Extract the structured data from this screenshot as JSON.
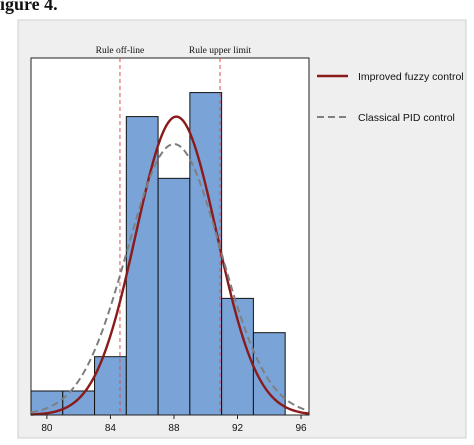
{
  "header_fragment": "igure 4.",
  "chart_data": {
    "type": "bar",
    "title": "",
    "xlabel": "",
    "ylabel": "",
    "xlim": [
      79,
      96.5
    ],
    "ylim": [
      0,
      1.0
    ],
    "x_ticks": [
      "80",
      "84",
      "88",
      "92",
      "96"
    ],
    "x_tick_values": [
      80,
      84,
      88,
      92,
      96
    ],
    "bins": [
      {
        "x0": 79.0,
        "x1": 81.0,
        "value": 0.07
      },
      {
        "x0": 81.0,
        "x1": 83.0,
        "value": 0.07
      },
      {
        "x0": 83.0,
        "x1": 85.0,
        "value": 0.17
      },
      {
        "x0": 85.0,
        "x1": 87.0,
        "value": 0.87
      },
      {
        "x0": 87.0,
        "x1": 89.0,
        "value": 0.69
      },
      {
        "x0": 89.0,
        "x1": 91.0,
        "value": 0.94
      },
      {
        "x0": 91.0,
        "x1": 93.0,
        "value": 0.34
      },
      {
        "x0": 93.0,
        "x1": 95.0,
        "value": 0.24
      }
    ],
    "series": [
      {
        "name": "Improved fuzzy control",
        "mean": 88.15,
        "sd": 2.55,
        "peak": 0.87,
        "color": "#8b1a1a",
        "dash": "solid"
      },
      {
        "name": "Classical PID control",
        "mean": 88.0,
        "sd": 2.95,
        "peak": 0.79,
        "color": "#7f7f7f",
        "dash": "dashed"
      }
    ],
    "limits": [
      {
        "label": "Rule off-line",
        "x": 84.6
      },
      {
        "label": "Rule upper limit",
        "x": 90.9
      }
    ],
    "colors": {
      "bar_fill": "#7aa3d8",
      "bar_stroke": "#111111",
      "limit_line": "#e05050",
      "outer_bg": "#efefef",
      "plot_bg": "#ffffff"
    },
    "grid": false,
    "legend_position": "right"
  }
}
